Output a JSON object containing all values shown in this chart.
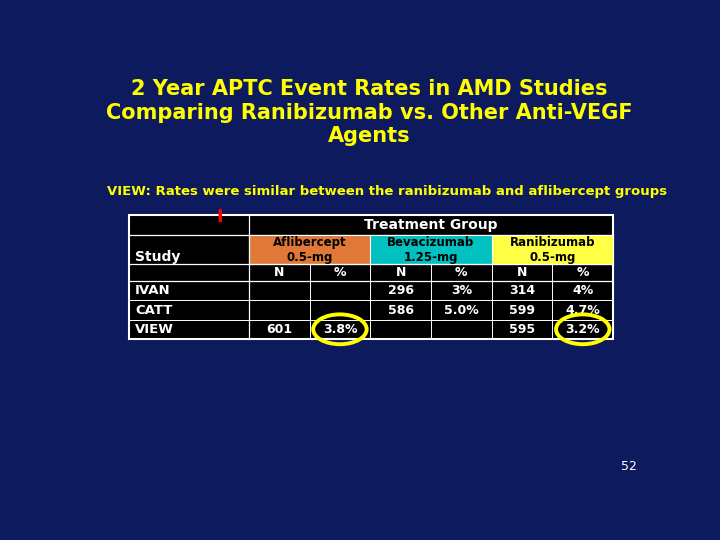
{
  "title": "2 Year APTC Event Rates in AMD Studies\nComparing Ranibizumab vs. Other Anti-VEGF\nAgents",
  "subtitle": "VIEW: Rates were similar between the ranibizumab and aflibercept groups",
  "bg_color": "#0d1b5e",
  "title_color": "#ffff00",
  "subtitle_color": "#ffff00",
  "page_number": "52",
  "table": {
    "header1": "Treatment Group",
    "col_header_labels": [
      "Aflibercept\n0.5-mg",
      "Bevacizumab\n1.25-mg",
      "Ranibizumab\n0.5-mg"
    ],
    "col_header_colors": [
      "#e07838",
      "#00c0c0",
      "#ffff44"
    ],
    "col_header_text_colors": [
      "#000000",
      "#000000",
      "#000000"
    ],
    "sub_headers": [
      "N",
      "%",
      "N",
      "%",
      "N",
      "%"
    ],
    "study_label": "Study",
    "row_label_I": "I",
    "rows": [
      {
        "study": "IVAN",
        "data": [
          "",
          "",
          "296",
          "3%",
          "314",
          "4%"
        ]
      },
      {
        "study": "CATT",
        "data": [
          "",
          "",
          "586",
          "5.0%",
          "599",
          "4.7%"
        ]
      },
      {
        "study": "VIEW",
        "data": [
          "601",
          "3.8%",
          "",
          "",
          "595",
          "3.2%"
        ]
      }
    ],
    "circle_cells": [
      [
        2,
        1
      ],
      [
        2,
        5
      ]
    ]
  }
}
